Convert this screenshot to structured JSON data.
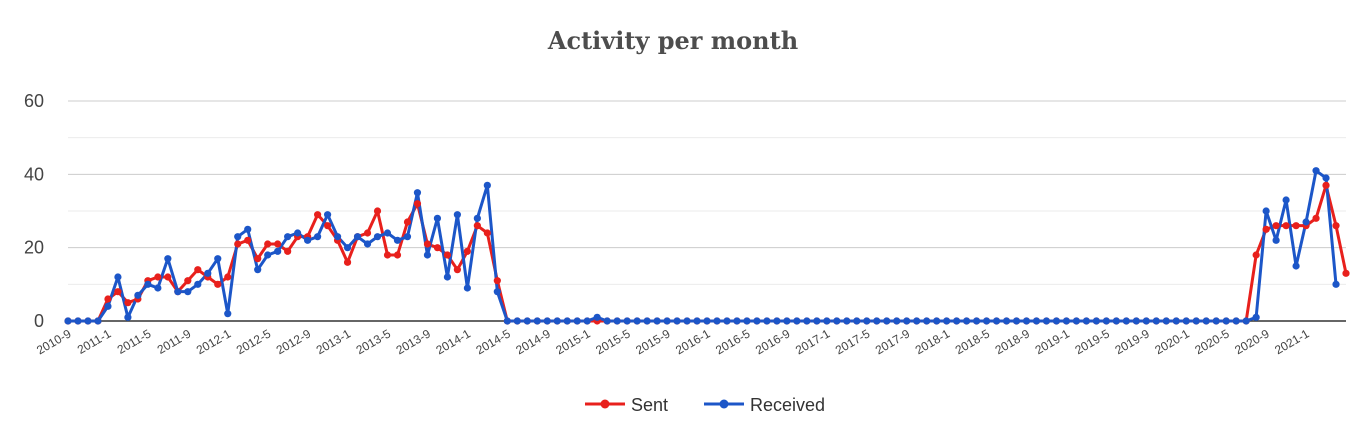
{
  "chart_data": {
    "type": "line",
    "title": "Activity per month",
    "xlabel": "",
    "ylabel": "",
    "ylim": [
      0,
      60
    ],
    "yticks": [
      "0",
      "20",
      "40",
      "60"
    ],
    "xtick_labels": [
      "2010-9",
      "2011-1",
      "2011-5",
      "2011-9",
      "2012-1",
      "2012-5",
      "2012-9",
      "2013-1",
      "2013-5",
      "2013-9",
      "2014-1",
      "2014-5",
      "2014-9",
      "2015-1",
      "2015-5",
      "2015-9",
      "2016-1",
      "2016-5",
      "2016-9",
      "2017-1",
      "2017-5",
      "2017-9",
      "2018-1",
      "2018-5",
      "2018-9",
      "2019-1",
      "2019-5",
      "2019-9",
      "2020-1",
      "2020-5",
      "2020-9",
      "2021-1"
    ],
    "first_month": "2010-9",
    "legend_position": "bottom",
    "series": [
      {
        "name": "Sent",
        "color": "#e8201c",
        "values": [
          0,
          0,
          0,
          0,
          6,
          8,
          5,
          6,
          11,
          12,
          12,
          8,
          11,
          14,
          12,
          10,
          12,
          21,
          22,
          17,
          21,
          21,
          19,
          23,
          23,
          29,
          26,
          22,
          16,
          23,
          24,
          30,
          18,
          18,
          27,
          32,
          21,
          20,
          18,
          14,
          19,
          26,
          24,
          11,
          0,
          0,
          0,
          0,
          0,
          0,
          0,
          0,
          0,
          0,
          0,
          0,
          0,
          0,
          0,
          0,
          0,
          0,
          0,
          0,
          0,
          0,
          0,
          0,
          0,
          0,
          0,
          0,
          0,
          0,
          0,
          0,
          0,
          0,
          0,
          0,
          0,
          0,
          0,
          0,
          0,
          0,
          0,
          0,
          0,
          0,
          0,
          0,
          0,
          0,
          0,
          0,
          0,
          0,
          0,
          0,
          0,
          0,
          0,
          0,
          0,
          0,
          0,
          0,
          0,
          0,
          0,
          0,
          0,
          0,
          0,
          0,
          0,
          0,
          0,
          18,
          25,
          26,
          26,
          26,
          26,
          28,
          37,
          26,
          13
        ]
      },
      {
        "name": "Received",
        "color": "#1c56c8",
        "values": [
          0,
          0,
          0,
          0,
          4,
          12,
          1,
          7,
          10,
          9,
          17,
          8,
          8,
          10,
          13,
          17,
          2,
          23,
          25,
          14,
          18,
          19,
          23,
          24,
          22,
          23,
          29,
          23,
          20,
          23,
          21,
          23,
          24,
          22,
          23,
          35,
          18,
          28,
          12,
          29,
          9,
          28,
          37,
          8,
          0,
          0,
          0,
          0,
          0,
          0,
          0,
          0,
          0,
          1,
          0,
          0,
          0,
          0,
          0,
          0,
          0,
          0,
          0,
          0,
          0,
          0,
          0,
          0,
          0,
          0,
          0,
          0,
          0,
          0,
          0,
          0,
          0,
          0,
          0,
          0,
          0,
          0,
          0,
          0,
          0,
          0,
          0,
          0,
          0,
          0,
          0,
          0,
          0,
          0,
          0,
          0,
          0,
          0,
          0,
          0,
          0,
          0,
          0,
          0,
          0,
          0,
          0,
          0,
          0,
          0,
          0,
          0,
          0,
          0,
          0,
          0,
          0,
          0,
          0,
          1,
          30,
          22,
          33,
          15,
          27,
          41,
          39,
          10
        ]
      }
    ]
  }
}
